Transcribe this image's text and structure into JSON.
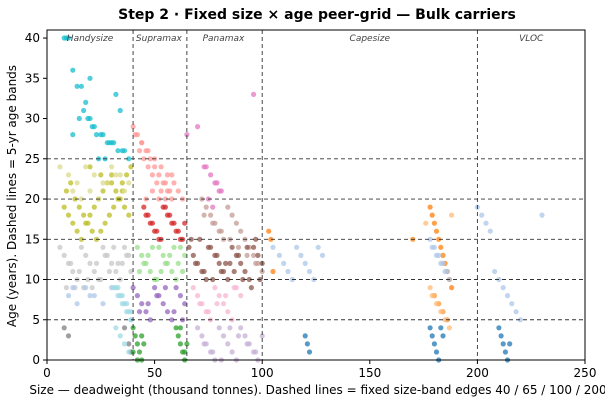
{
  "chart_data": {
    "type": "scatter",
    "title": "Step 2 · Fixed size × age peer-grid — Bulk carriers",
    "xlabel": "Size — deadweight (thousand tonnes).  Dashed lines = fixed size-band edges 40 / 65 / 100 / 200",
    "ylabel": "Age (years).  Dashed lines = 5-yr age bands",
    "xlim": [
      0,
      250
    ],
    "ylim": [
      0,
      41
    ],
    "x_ticks": [
      0,
      50,
      100,
      150,
      200,
      250
    ],
    "y_ticks": [
      0,
      5,
      10,
      15,
      20,
      25,
      30,
      35,
      40
    ],
    "size_band_edges": [
      40,
      65,
      100,
      200
    ],
    "age_band_edges": [
      5,
      10,
      15,
      20,
      25
    ],
    "grid": false,
    "band_labels": [
      {
        "text": "Handysize",
        "x": 20,
        "y": 40
      },
      {
        "text": "Supramax",
        "x": 52,
        "y": 40
      },
      {
        "text": "Panamax",
        "x": 82,
        "y": 40
      },
      {
        "text": "Capesize",
        "x": 150,
        "y": 40
      },
      {
        "text": "VLOC",
        "x": 225,
        "y": 40
      }
    ],
    "series": [
      {
        "color": "#17becf",
        "x": [
          8,
          9,
          10,
          12,
          14,
          16,
          18,
          20,
          22,
          25,
          28,
          30,
          15,
          17,
          19,
          21,
          23,
          26,
          29,
          31,
          33,
          35,
          24,
          27,
          12,
          36,
          38,
          32,
          34,
          20
        ],
        "y": [
          40,
          40,
          40,
          36,
          34,
          34,
          32,
          30,
          29,
          28,
          27,
          27,
          30,
          31,
          30,
          29,
          28,
          28,
          27,
          27,
          26,
          26,
          25,
          25,
          28,
          26,
          25,
          33,
          31,
          35
        ]
      },
      {
        "color": "#bcbd22",
        "x": [
          8,
          10,
          12,
          14,
          16,
          18,
          20,
          22,
          24,
          26,
          28,
          30,
          32,
          34,
          36,
          38,
          9,
          11,
          13,
          15,
          17,
          19,
          21,
          23,
          25,
          27,
          29,
          31,
          33,
          35,
          37,
          39,
          20,
          25,
          30,
          35
        ],
        "y": [
          19,
          18,
          17,
          16,
          15,
          17,
          18,
          19,
          20,
          21,
          22,
          23,
          21,
          20,
          19,
          18,
          21,
          22,
          20,
          19,
          18,
          17,
          16,
          15,
          16,
          17,
          18,
          19,
          20,
          22,
          23,
          24,
          24,
          23,
          22,
          21
        ]
      },
      {
        "color": "#dbdb8d",
        "x": [
          6,
          10,
          14,
          18,
          22,
          26,
          30,
          34,
          38,
          12,
          16,
          20,
          24,
          28,
          32,
          36
        ],
        "y": [
          24,
          23,
          22,
          24,
          23,
          22,
          24,
          23,
          22,
          21,
          20,
          21,
          20,
          22,
          23,
          21
        ]
      },
      {
        "color": "#c7c7c7",
        "x": [
          6,
          8,
          10,
          12,
          14,
          16,
          18,
          20,
          22,
          24,
          26,
          28,
          30,
          32,
          34,
          36,
          38,
          9,
          13,
          17,
          21,
          25,
          29,
          33,
          37,
          11,
          15,
          19,
          23,
          27,
          31,
          35,
          39
        ],
        "y": [
          14,
          13,
          12,
          11,
          10,
          14,
          13,
          12,
          11,
          10,
          14,
          13,
          12,
          11,
          10,
          14,
          13,
          9,
          9,
          9,
          9,
          10,
          11,
          12,
          13,
          12,
          11,
          10,
          12,
          13,
          14,
          12,
          11
        ]
      },
      {
        "color": "#7f7f7f",
        "x": [
          8,
          10,
          36,
          38,
          39
        ],
        "y": [
          4,
          3,
          4,
          2,
          1
        ]
      },
      {
        "color": "#aec7e8",
        "x": [
          10,
          14,
          18,
          22,
          26,
          12,
          20,
          30
        ],
        "y": [
          8,
          7,
          9,
          8,
          7,
          9,
          8,
          9
        ]
      },
      {
        "color": "#9edae5",
        "x": [
          32,
          34,
          36,
          38,
          39,
          33,
          35,
          37,
          39,
          31,
          33,
          35,
          37,
          39,
          32,
          34,
          36,
          38
        ],
        "y": [
          9,
          8,
          7,
          6,
          5,
          9,
          8,
          7,
          6,
          9,
          8,
          7,
          6,
          5,
          4,
          3,
          2,
          1
        ]
      },
      {
        "color": "#ff9896",
        "x": [
          40,
          42,
          44,
          46,
          48,
          50,
          52,
          54,
          56,
          58,
          43,
          45,
          47,
          49,
          51,
          53,
          55,
          57,
          41,
          44,
          47,
          50,
          53,
          56,
          59,
          46,
          49,
          52,
          55,
          58,
          61,
          63
        ],
        "y": [
          29,
          28,
          27,
          26,
          25,
          24,
          23,
          22,
          21,
          20,
          26,
          25,
          24,
          23,
          22,
          21,
          20,
          21,
          28,
          27,
          26,
          25,
          24,
          23,
          22,
          20,
          21,
          20,
          22,
          23,
          21,
          20
        ]
      },
      {
        "color": "#d62728",
        "x": [
          45,
          47,
          49,
          51,
          53,
          55,
          57,
          59,
          61,
          63,
          46,
          48,
          50,
          52,
          54,
          56,
          58,
          60,
          62,
          64
        ],
        "y": [
          19,
          18,
          17,
          16,
          15,
          19,
          18,
          17,
          16,
          15,
          18,
          17,
          16,
          15,
          19,
          18,
          17,
          16,
          15,
          17
        ]
      },
      {
        "color": "#98df8a",
        "x": [
          42,
          44,
          46,
          48,
          50,
          52,
          54,
          56,
          58,
          60,
          62,
          64,
          43,
          45,
          47,
          49,
          51,
          53,
          55,
          57,
          59,
          61,
          63
        ],
        "y": [
          14,
          13,
          12,
          11,
          10,
          14,
          13,
          12,
          11,
          10,
          14,
          13,
          11,
          12,
          13,
          14,
          10,
          11,
          12,
          13,
          14,
          12,
          11
        ]
      },
      {
        "color": "#9467bd",
        "x": [
          40,
          42,
          44,
          46,
          48,
          50,
          52,
          54,
          56,
          58,
          60,
          62,
          64,
          43,
          47,
          51,
          55,
          59,
          63
        ],
        "y": [
          9,
          8,
          7,
          6,
          5,
          9,
          8,
          7,
          6,
          5,
          9,
          8,
          7,
          6,
          7,
          8,
          9,
          6,
          5
        ]
      },
      {
        "color": "#2ca02c",
        "x": [
          40,
          41,
          42,
          43,
          44,
          45,
          60,
          61,
          62,
          63,
          64,
          65,
          40,
          42,
          44,
          62,
          64
        ],
        "y": [
          4,
          3,
          2,
          1,
          0,
          2,
          4,
          3,
          2,
          1,
          0,
          2,
          1,
          0,
          3,
          4,
          1
        ]
      },
      {
        "color": "#e377c2",
        "x": [
          65,
          70,
          74,
          76,
          78,
          80,
          75,
          77,
          79,
          81,
          73,
          96
        ],
        "y": [
          28,
          29,
          24,
          23,
          22,
          21,
          20,
          19,
          22,
          21,
          24,
          33
        ]
      },
      {
        "color": "#c49c94",
        "x": [
          72,
          74,
          76,
          78,
          80,
          82,
          84,
          86,
          88,
          90,
          92,
          94,
          96,
          98,
          100,
          73,
          77,
          81,
          85,
          89,
          93,
          97
        ],
        "y": [
          20,
          19,
          18,
          17,
          16,
          15,
          19,
          18,
          17,
          16,
          15,
          14,
          13,
          12,
          11,
          18,
          17,
          16,
          15,
          14,
          13,
          12
        ]
      },
      {
        "color": "#8c564b",
        "x": [
          66,
          68,
          70,
          72,
          74,
          76,
          78,
          80,
          82,
          84,
          86,
          88,
          90,
          92,
          94,
          96,
          98,
          100,
          67,
          71,
          75,
          79,
          83,
          87,
          91,
          95,
          99,
          69,
          73,
          77,
          81,
          85,
          89,
          93,
          97
        ],
        "y": [
          14,
          13,
          12,
          11,
          10,
          14,
          13,
          12,
          11,
          10,
          14,
          13,
          12,
          11,
          10,
          14,
          13,
          12,
          15,
          15,
          14,
          13,
          12,
          11,
          10,
          9,
          10,
          12,
          11,
          10,
          11,
          12,
          13,
          14,
          15
        ]
      },
      {
        "color": "#f7b6d2",
        "x": [
          68,
          70,
          72,
          74,
          76,
          78,
          80,
          82,
          84,
          86,
          88,
          90,
          71,
          75,
          79,
          83,
          87
        ],
        "y": [
          9,
          8,
          7,
          6,
          5,
          9,
          8,
          7,
          6,
          5,
          9,
          8,
          7,
          6,
          7,
          8,
          9
        ]
      },
      {
        "color": "#c5b0d5",
        "x": [
          70,
          72,
          74,
          76,
          78,
          80,
          82,
          84,
          86,
          88,
          90,
          92,
          94,
          96,
          98,
          100,
          73,
          77,
          81,
          85,
          89,
          93,
          97
        ],
        "y": [
          4,
          3,
          2,
          1,
          0,
          4,
          3,
          2,
          1,
          0,
          4,
          3,
          2,
          1,
          0,
          3,
          2,
          1,
          0,
          4,
          3,
          2,
          1
        ]
      },
      {
        "color": "#ff7f0e",
        "x": [
          103,
          104,
          105,
          178,
          179,
          180,
          181,
          182,
          183,
          184,
          185,
          186,
          187,
          188,
          180,
          182,
          184,
          186,
          170
        ],
        "y": [
          16,
          15,
          11,
          19,
          18,
          17,
          16,
          15,
          14,
          13,
          12,
          11,
          10,
          9,
          8,
          7,
          6,
          5,
          15
        ]
      },
      {
        "color": "#ffbb78",
        "x": [
          178,
          180,
          182,
          184,
          186,
          179,
          181,
          183,
          185,
          187,
          176,
          188
        ],
        "y": [
          9,
          8,
          7,
          6,
          5,
          8,
          7,
          6,
          5,
          4,
          17,
          18
        ]
      },
      {
        "color": "#aec7e8",
        "x": [
          105,
          108,
          110,
          112,
          114,
          116,
          118,
          120,
          122,
          124,
          126,
          128,
          178,
          180,
          182,
          184,
          186,
          179,
          181,
          183,
          185,
          187,
          200,
          202,
          204,
          206,
          208,
          210,
          212,
          214,
          216,
          218,
          220,
          230
        ],
        "y": [
          14,
          13,
          12,
          11,
          10,
          14,
          13,
          12,
          11,
          10,
          14,
          13,
          15,
          14,
          13,
          12,
          11,
          14,
          13,
          12,
          11,
          10,
          19,
          18,
          17,
          16,
          11,
          10,
          9,
          8,
          7,
          6,
          5,
          18
        ]
      },
      {
        "color": "#1f77b4",
        "x": [
          120,
          121,
          122,
          178,
          179,
          180,
          181,
          182,
          183,
          184,
          210,
          211,
          212,
          213,
          214,
          215
        ],
        "y": [
          3,
          2,
          1,
          4,
          3,
          2,
          1,
          0,
          4,
          3,
          4,
          3,
          2,
          1,
          0,
          2
        ]
      }
    ]
  }
}
